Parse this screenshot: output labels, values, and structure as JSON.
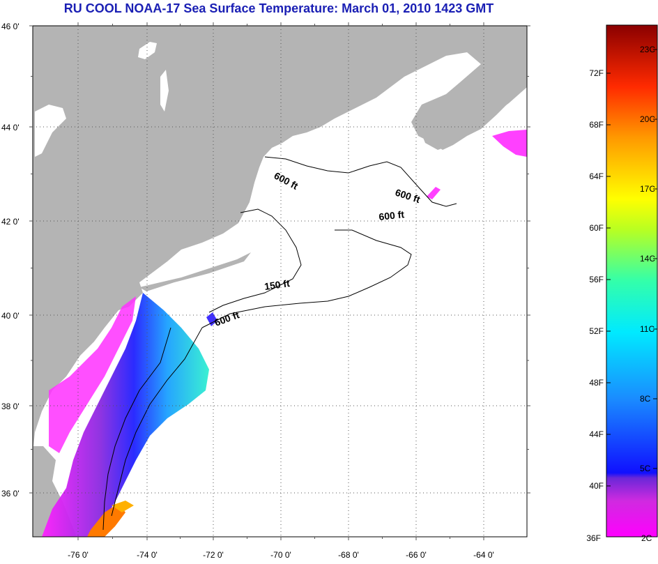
{
  "title": "RU COOL  NOAA-17  Sea Surface Temperature:  March 01, 2010 1423 GMT",
  "lat_labels": [
    "46 0'",
    "44 0'",
    "42 0'",
    "40 0'",
    "38 0'",
    "36 0'"
  ],
  "lon_labels": [
    "-76 0'",
    "-74 0'",
    "-72 0'",
    "-70 0'",
    "-68 0'",
    "-66 0'",
    "-64 0'"
  ],
  "contours": [
    "600 ft",
    "600 ft",
    "600 ft",
    "150 ft",
    "600 ft"
  ],
  "colorbar": {
    "fahrenheit": [
      "72F",
      "68F",
      "64F",
      "60F",
      "56F",
      "52F",
      "48F",
      "44F",
      "40F",
      "36F"
    ],
    "celsius": [
      "23C",
      "20C",
      "17C",
      "14C",
      "11C",
      "8C",
      "5C",
      "2C"
    ]
  },
  "colors": {
    "land": "#b4b4b4",
    "title": "#1a1fb4",
    "grid": "#555555"
  }
}
